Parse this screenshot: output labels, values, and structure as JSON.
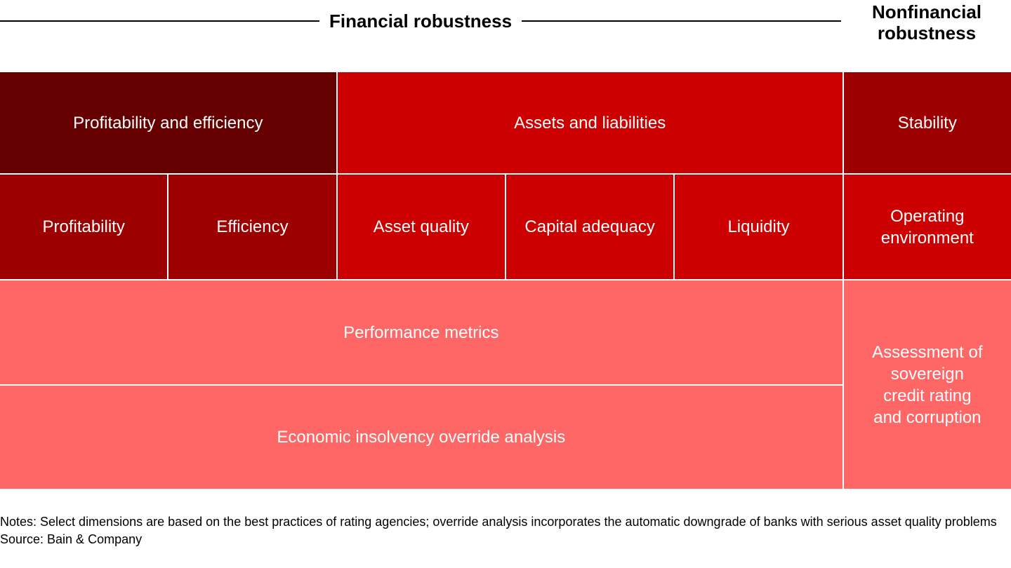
{
  "header": {
    "financial_title": "Financial robustness",
    "nonfinancial_title": "Nonfinancial\nrobustness"
  },
  "colors": {
    "dark_maroon": "#660000",
    "mid_red": "#9d0000",
    "bright_red": "#cc0000",
    "salmon": "#ff6666",
    "separator": "#ffffff",
    "header_rule": "#000000"
  },
  "matrix": {
    "cells": [
      {
        "id": "profitability-and-efficiency",
        "label": "Profitability and efficiency",
        "color": "#660000"
      },
      {
        "id": "assets-and-liabilities",
        "label": "Assets and liabilities",
        "color": "#cc0000"
      },
      {
        "id": "stability",
        "label": "Stability",
        "color": "#9d0000"
      },
      {
        "id": "profitability",
        "label": "Profitability",
        "color": "#9d0000"
      },
      {
        "id": "efficiency",
        "label": "Efficiency",
        "color": "#9d0000"
      },
      {
        "id": "asset-quality",
        "label": "Asset quality",
        "color": "#cc0000"
      },
      {
        "id": "capital-adequacy",
        "label": "Capital adequacy",
        "color": "#cc0000"
      },
      {
        "id": "liquidity",
        "label": "Liquidity",
        "color": "#cc0000"
      },
      {
        "id": "operating-environment",
        "label": "Operating\nenvironment",
        "color": "#cc0000"
      },
      {
        "id": "performance-metrics",
        "label": "Performance metrics",
        "color": "#ff6666"
      },
      {
        "id": "economic-insolvency-override-analysis",
        "label": "Economic insolvency override analysis",
        "color": "#ff6666"
      },
      {
        "id": "assessment-sovereign",
        "label": "Assessment of\nsovereign\ncredit rating\nand corruption",
        "color": "#ff6666"
      }
    ]
  },
  "footer": {
    "notes_text": "Notes: Select dimensions are based on the best practices of rating agencies; override analysis incorporates the automatic downgrade of banks with serious asset quality problems",
    "source_text": "Source: Bain & Company"
  }
}
